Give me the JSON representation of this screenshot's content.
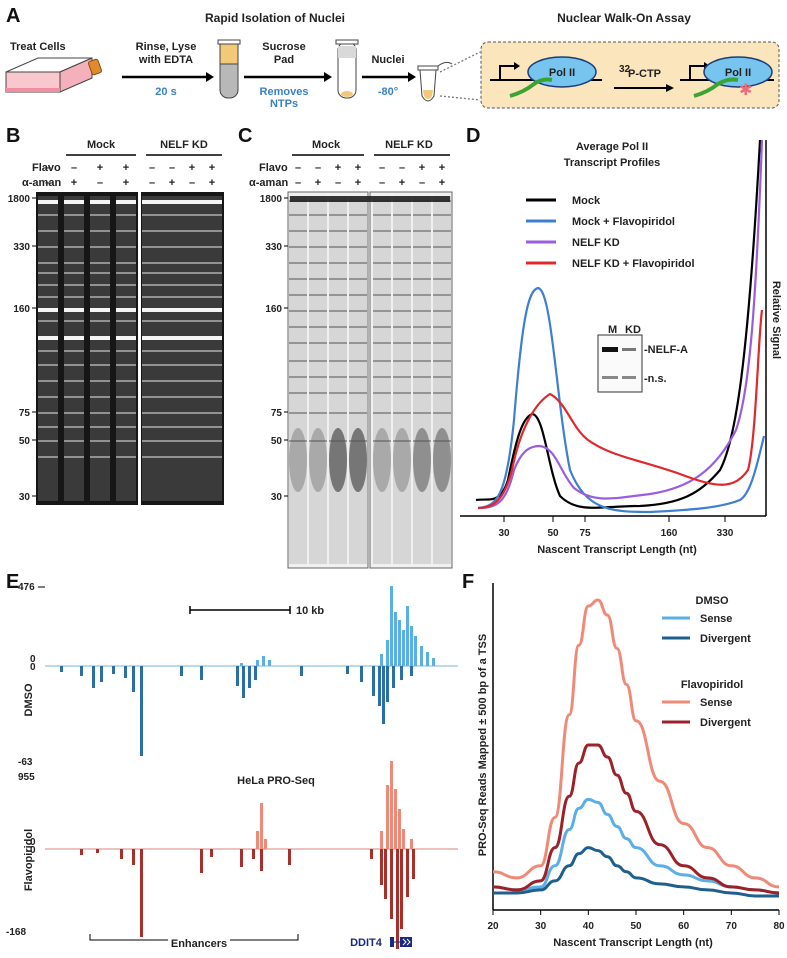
{
  "panelA": {
    "label": "A",
    "header_left": "Rapid Isolation of Nuclei",
    "header_right": "Nuclear Walk-On Assay",
    "steps": [
      "Treat Cells",
      "Rinse, Lyse",
      "with EDTA",
      "Sucrose",
      "Pad",
      "Nuclei"
    ],
    "step_notes": [
      "20 s",
      "Removes",
      "NTPs",
      "-80°"
    ],
    "polii": "Pol II",
    "ctp_sup": "32",
    "ctp": "P-CTP"
  },
  "gels": {
    "B": {
      "label": "B",
      "group1": "Mock",
      "group2": "NELF KD"
    },
    "C": {
      "label": "C",
      "group1": "Mock",
      "group2": "NELF KD"
    },
    "row_flavo": "Flavo",
    "row_aman": "α-aman",
    "flavo_signs": [
      "–",
      "–",
      "+",
      "+",
      "–",
      "–",
      "+",
      "+"
    ],
    "aman_signs": [
      "–",
      "+",
      "–",
      "+",
      "–",
      "+",
      "–",
      "+"
    ],
    "markers": [
      "1800",
      "330",
      "160",
      "75",
      "50",
      "30"
    ]
  },
  "panelD": {
    "label": "D",
    "title_line1": "Average Pol II",
    "title_line2": "Transcript Profiles",
    "legend": [
      "Mock",
      "Mock + Flavopiridol",
      "NELF KD",
      "NELF KD + Flavopiridol"
    ],
    "ylabel": "Relative Signal",
    "xlabel": "Nascent Transcript Length (nt)",
    "xticks": [
      "30",
      "50",
      "75",
      "160",
      "330"
    ],
    "inset_m": "M",
    "inset_kd": "KD",
    "inset_nelfa": "-NELF-A",
    "inset_ns": "-n.s."
  },
  "panelE": {
    "label": "E",
    "scale_label": "10 kb",
    "dmso_top": "476",
    "dmso_zero1": "0",
    "dmso_zero2": "0",
    "dmso_bottom": "-63",
    "flavo_top": "955",
    "flavo_zero1": "0",
    "flavo_zero2": "0",
    "flavo_bottom": "-168",
    "track1": "DMSO",
    "track2": "Flavopiridol",
    "center_title": "HeLa PRO-Seq",
    "enhancers": "Enhancers",
    "gene": "DDIT4"
  },
  "chart_data": {
    "type": "line",
    "panel": "F",
    "xlabel": "Nascent Transcript Length (nt)",
    "ylabel": "PRO-Seq Reads Mapped ± 500 bp of a TSS",
    "xlim": [
      20,
      80
    ],
    "xticks": [
      "20",
      "30",
      "40",
      "50",
      "60",
      "70",
      "80"
    ],
    "legend_groups": [
      "DMSO",
      "Flavopiridol"
    ],
    "series": [
      {
        "name": "Sense",
        "group": "DMSO",
        "color": "#5ab0e6",
        "x": [
          20,
          25,
          30,
          33,
          36,
          38,
          40,
          42,
          44,
          46,
          48,
          50,
          55,
          60,
          65,
          70,
          75,
          80
        ],
        "y": [
          0.05,
          0.04,
          0.05,
          0.12,
          0.24,
          0.31,
          0.34,
          0.33,
          0.29,
          0.25,
          0.21,
          0.18,
          0.12,
          0.09,
          0.07,
          0.05,
          0.04,
          0.03
        ]
      },
      {
        "name": "Divergent",
        "group": "DMSO",
        "color": "#1f5f8e",
        "x": [
          20,
          25,
          30,
          33,
          36,
          38,
          40,
          42,
          44,
          46,
          48,
          50,
          55,
          60,
          65,
          70,
          75,
          80
        ],
        "y": [
          0.03,
          0.03,
          0.04,
          0.07,
          0.12,
          0.16,
          0.18,
          0.17,
          0.15,
          0.12,
          0.1,
          0.08,
          0.06,
          0.05,
          0.04,
          0.03,
          0.02,
          0.02
        ]
      },
      {
        "name": "Sense",
        "group": "Flavopiridol",
        "color": "#f08a78",
        "x": [
          20,
          25,
          30,
          33,
          36,
          38,
          40,
          42,
          44,
          46,
          48,
          50,
          55,
          60,
          65,
          70,
          75,
          80
        ],
        "y": [
          0.1,
          0.08,
          0.12,
          0.28,
          0.62,
          0.85,
          0.98,
          1.0,
          0.95,
          0.84,
          0.72,
          0.6,
          0.4,
          0.26,
          0.18,
          0.12,
          0.08,
          0.05
        ]
      },
      {
        "name": "Divergent",
        "group": "Flavopiridol",
        "color": "#9b2228",
        "x": [
          20,
          25,
          30,
          33,
          36,
          38,
          40,
          42,
          44,
          46,
          48,
          50,
          55,
          60,
          65,
          70,
          75,
          80
        ],
        "y": [
          0.05,
          0.04,
          0.07,
          0.18,
          0.35,
          0.46,
          0.52,
          0.52,
          0.48,
          0.42,
          0.36,
          0.3,
          0.19,
          0.12,
          0.08,
          0.05,
          0.04,
          0.03
        ]
      }
    ]
  },
  "panelD_curves": {
    "type": "line",
    "series": [
      {
        "name": "Mock",
        "color": "#000000"
      },
      {
        "name": "Mock + Flavopiridol",
        "color": "#3d7fd0"
      },
      {
        "name": "NELF KD",
        "color": "#9a5de0"
      },
      {
        "name": "NELF KD + Flavopiridol",
        "color": "#e0282c"
      }
    ]
  }
}
